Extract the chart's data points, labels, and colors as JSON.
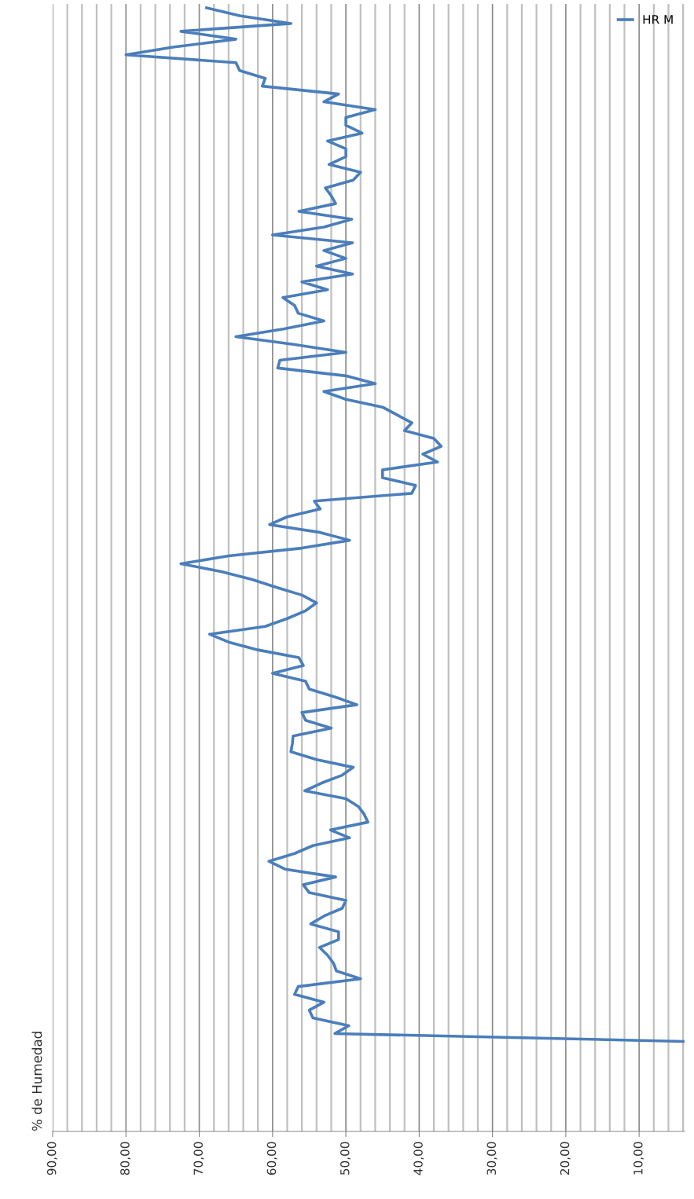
{
  "chart_data": {
    "type": "line",
    "orientation": "horizontal",
    "ylabel": "% de Humedad",
    "legend": "top right",
    "grid": true,
    "marker": "none",
    "line_style": "solid",
    "xlim": [
      90,
      3.8
    ],
    "xticks": [
      {
        "value": 90,
        "label": "90,00"
      },
      {
        "value": 88,
        "label": null
      },
      {
        "value": 86,
        "label": null
      },
      {
        "value": 84,
        "label": null
      },
      {
        "value": 82,
        "label": null
      },
      {
        "value": 80,
        "label": "80,00"
      },
      {
        "value": 78,
        "label": null
      },
      {
        "value": 76,
        "label": null
      },
      {
        "value": 74,
        "label": null
      },
      {
        "value": 72,
        "label": null
      },
      {
        "value": 70,
        "label": "70,00"
      },
      {
        "value": 68,
        "label": null
      },
      {
        "value": 66,
        "label": null
      },
      {
        "value": 64,
        "label": null
      },
      {
        "value": 62,
        "label": null
      },
      {
        "value": 60,
        "label": "60,00"
      },
      {
        "value": 58,
        "label": null
      },
      {
        "value": 56,
        "label": null
      },
      {
        "value": 54,
        "label": null
      },
      {
        "value": 52,
        "label": null
      },
      {
        "value": 50,
        "label": "50,00"
      },
      {
        "value": 48,
        "label": null
      },
      {
        "value": 46,
        "label": null
      },
      {
        "value": 44,
        "label": null
      },
      {
        "value": 42,
        "label": null
      },
      {
        "value": 40,
        "label": "40,00"
      },
      {
        "value": 38,
        "label": null
      },
      {
        "value": 36,
        "label": null
      },
      {
        "value": 34,
        "label": null
      },
      {
        "value": 32,
        "label": null
      },
      {
        "value": 30,
        "label": "30,00"
      },
      {
        "value": 28,
        "label": null
      },
      {
        "value": 26,
        "label": null
      },
      {
        "value": 24,
        "label": null
      },
      {
        "value": 22,
        "label": null
      },
      {
        "value": 20,
        "label": "20,00"
      },
      {
        "value": 18,
        "label": null
      },
      {
        "value": 16,
        "label": null
      },
      {
        "value": 14,
        "label": null
      },
      {
        "value": 12,
        "label": null
      },
      {
        "value": 10,
        "label": "10,00"
      },
      {
        "value": 8,
        "label": null
      },
      {
        "value": 6,
        "label": null
      },
      {
        "value": 4,
        "label": null
      }
    ],
    "categories": [
      null,
      null,
      null,
      null,
      null,
      null,
      null,
      null,
      null,
      null,
      null,
      null,
      null,
      null,
      null,
      null,
      null,
      null,
      null,
      null,
      null,
      null,
      null,
      null,
      null,
      null,
      null,
      null,
      null,
      null,
      null,
      null,
      null,
      null,
      null,
      null,
      null,
      null,
      null,
      null,
      null,
      null,
      null,
      null,
      null,
      null,
      null,
      null,
      null,
      null,
      null,
      null,
      null,
      null,
      null,
      null,
      null,
      null,
      null,
      null,
      null,
      null,
      null,
      null,
      null,
      null,
      null,
      null,
      null,
      null,
      null,
      null,
      null,
      null,
      null,
      null,
      null,
      null,
      null,
      null,
      null,
      null,
      null,
      null,
      null,
      null,
      null,
      null,
      null,
      null,
      null,
      null,
      null,
      null,
      null,
      null,
      null,
      null,
      null,
      null,
      null,
      null,
      null,
      null,
      null,
      null,
      null,
      null,
      null,
      null,
      null,
      null,
      null,
      null,
      null,
      null,
      null,
      null,
      null,
      null,
      null,
      null,
      null,
      null,
      null,
      null,
      null,
      null,
      null,
      null,
      null,
      null,
      null,
      null,
      null,
      null,
      null,
      null,
      null,
      null,
      null,
      null,
      null,
      null
    ],
    "series": [
      {
        "name": "HR M",
        "color": "#4a7ebb",
        "values": [
          69,
          64.5,
          57.5,
          72.5,
          65,
          73.4,
          80,
          65,
          64.5,
          61,
          61.4,
          51,
          53,
          46,
          50,
          50,
          47.8,
          52.5,
          50,
          50,
          52.3,
          48,
          49,
          52.8,
          52,
          51.4,
          56.4,
          49.2,
          53,
          60,
          49.1,
          53,
          50,
          54,
          49.1,
          56,
          52.5,
          58.6,
          57,
          56.5,
          53,
          58.4,
          65,
          57,
          50,
          59,
          59.3,
          50,
          46,
          53,
          50,
          45,
          43,
          41,
          42,
          38,
          37,
          39.5,
          37.5,
          45,
          45,
          40.5,
          41,
          54.3,
          53.5,
          58,
          60.4,
          53.5,
          49.5,
          56,
          66,
          72.5,
          67,
          62.8,
          59.5,
          56,
          54,
          55.5,
          58,
          61,
          68.6,
          66,
          62,
          56.4,
          55.8,
          60,
          55.5,
          55,
          51.5,
          48.5,
          56,
          55.5,
          52,
          57.2,
          57.3,
          57.5,
          54,
          49,
          50.5,
          53.3,
          55.6,
          50,
          48.3,
          47.5,
          47,
          52.1,
          49.5,
          54.5,
          57,
          60.5,
          58.3,
          51.4,
          55.8,
          55,
          50,
          50.5,
          53,
          54.8,
          51,
          51,
          53.6,
          52.5,
          51.7,
          51.3,
          48,
          56.5,
          57,
          53,
          55,
          54.5,
          49.6,
          51.5,
          4,
          null,
          null,
          null,
          null,
          null,
          null,
          null,
          null,
          null,
          null,
          null
        ]
      }
    ]
  }
}
